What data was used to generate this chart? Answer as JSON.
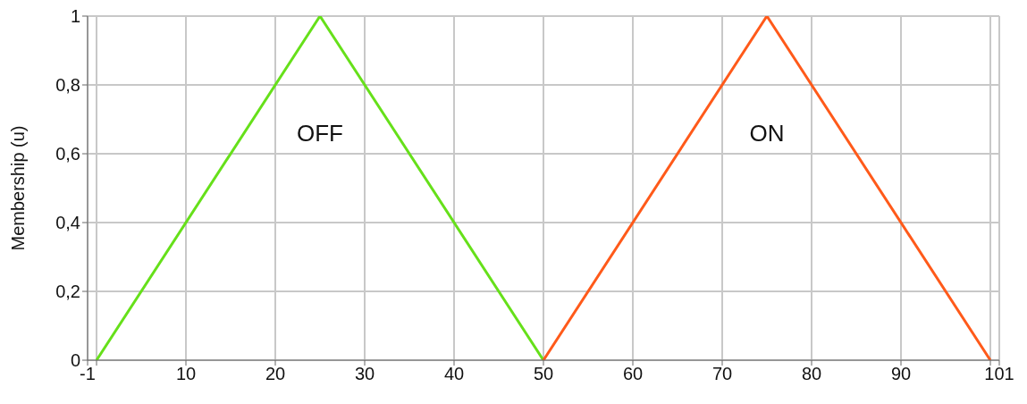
{
  "chart_data": {
    "type": "line",
    "ylabel": "Membership (u)",
    "series": [
      {
        "name": "OFF",
        "color": "#66e01a",
        "x": [
          0,
          25,
          50
        ],
        "values": [
          0,
          1,
          0
        ]
      },
      {
        "name": "ON",
        "color": "#ff5a1a",
        "x": [
          50,
          75,
          100
        ],
        "values": [
          0,
          1,
          0
        ]
      }
    ],
    "xlim": [
      -1,
      101
    ],
    "xticks": [
      -1,
      {
        "value": 0,
        "label": null
      },
      10,
      20,
      30,
      40,
      50,
      60,
      70,
      80,
      90,
      {
        "value": 100,
        "label": null
      },
      101
    ],
    "ylim": [
      0,
      1
    ],
    "yticks": [
      0,
      {
        "value": 0.2,
        "label": "0,2"
      },
      {
        "value": 0.4,
        "label": "0,4"
      },
      {
        "value": 0.6,
        "label": "0,6"
      },
      {
        "value": 0.8,
        "label": "0,8"
      },
      1
    ],
    "grid": true,
    "marker": "none",
    "line_style": "solid"
  }
}
